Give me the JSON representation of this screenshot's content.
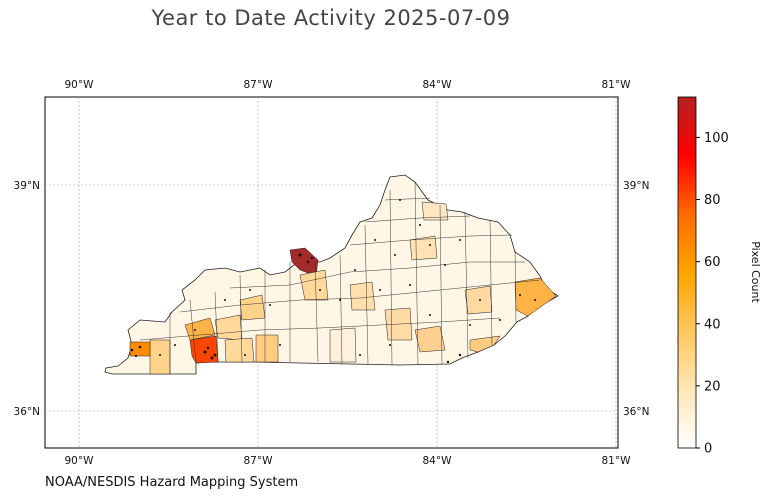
{
  "title": "Year to Date Activity 2025-07-09",
  "credit": "NOAA/NESDIS Hazard Mapping System",
  "map": {
    "lon_ticks": [
      "90°W",
      "87°W",
      "84°W",
      "81°W"
    ],
    "lat_ticks": [
      "39°N",
      "36°N"
    ],
    "grid": true,
    "region": "Kentucky counties"
  },
  "colorbar": {
    "label": "Pixel Count",
    "ticks": [
      "0",
      "20",
      "40",
      "60",
      "80",
      "100"
    ],
    "range": [
      0,
      113
    ],
    "colors": [
      "#ffffff",
      "#ffe7b8",
      "#ffc75e",
      "#ffa500",
      "#ff6a00",
      "#ff0000",
      "#b22222"
    ]
  },
  "chart_data": {
    "type": "heatmap",
    "title": "Year to Date Activity 2025-07-09",
    "colorbar_label": "Pixel Count",
    "colorbar_range": [
      0,
      113
    ],
    "highlighted_counts": [
      {
        "color": "#a52a2a",
        "value": 110
      },
      {
        "color": "#ff4500",
        "value": 60
      },
      {
        "color": "#ff8c00",
        "value": 45
      },
      {
        "color": "#ffb347",
        "value": 35
      }
    ]
  }
}
